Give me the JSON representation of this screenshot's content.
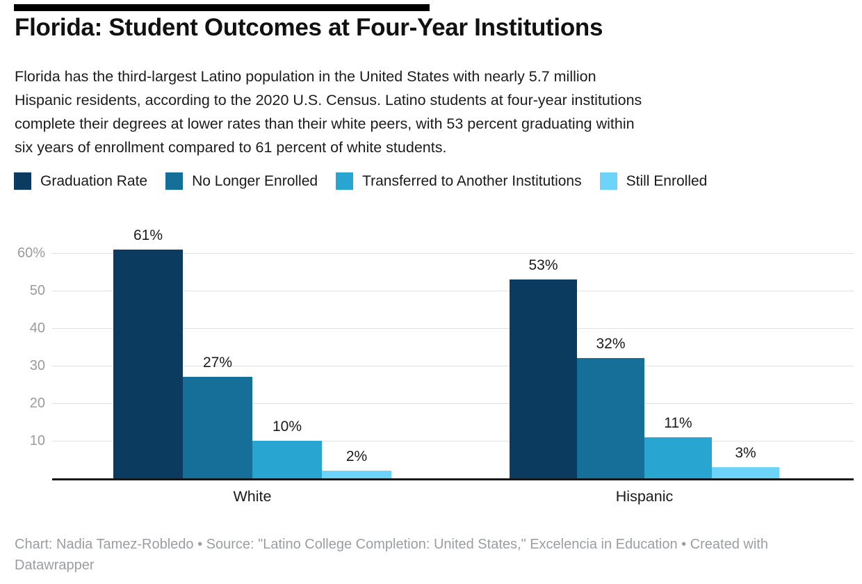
{
  "header": {
    "title": "Florida: Student Outcomes at Four-Year Institutions",
    "description_lines": [
      "Florida has the third-largest Latino population in the United States with nearly 5.7 million",
      "Hispanic residents, according to the 2020 U.S. Census. Latino students at four-year institutions",
      "complete their degrees at lower rates than their white peers, with 53 percent graduating within",
      "six years of enrollment compared to 61 percent of white students."
    ]
  },
  "colors": {
    "header_rule": "#000000",
    "grid": "#e0e0e0",
    "axis": "#18181a",
    "tick_label": "#9b9b9b"
  },
  "chart_data": {
    "type": "bar",
    "title": "Florida: Student Outcomes at Four-Year Institutions",
    "categories": [
      "White",
      "Hispanic"
    ],
    "series": [
      {
        "name": "Graduation Rate",
        "color": "#0b3c5f",
        "values": [
          61,
          53
        ]
      },
      {
        "name": "No Longer Enrolled",
        "color": "#156f99",
        "values": [
          27,
          32
        ]
      },
      {
        "name": "Transferred to Another Institutions",
        "color": "#29a5d2",
        "values": [
          10,
          11
        ]
      },
      {
        "name": "Still Enrolled",
        "color": "#6ed3f8",
        "values": [
          2,
          3
        ]
      }
    ],
    "value_suffix": "%",
    "ylabel": "",
    "xlabel": "",
    "ylim": [
      0,
      63
    ],
    "y_ticks": [
      10,
      20,
      30,
      40,
      50,
      60
    ],
    "y_tick_labels": [
      "10",
      "20",
      "30",
      "40",
      "50",
      "60%"
    ],
    "grid": "horizontal",
    "legend_position": "top"
  },
  "footer": {
    "lines": [
      "Chart: Nadia Tamez-Robledo • Source: \"Latino College Completion: United States,\" Excelencia in Education • Created with",
      "Datawrapper"
    ]
  }
}
